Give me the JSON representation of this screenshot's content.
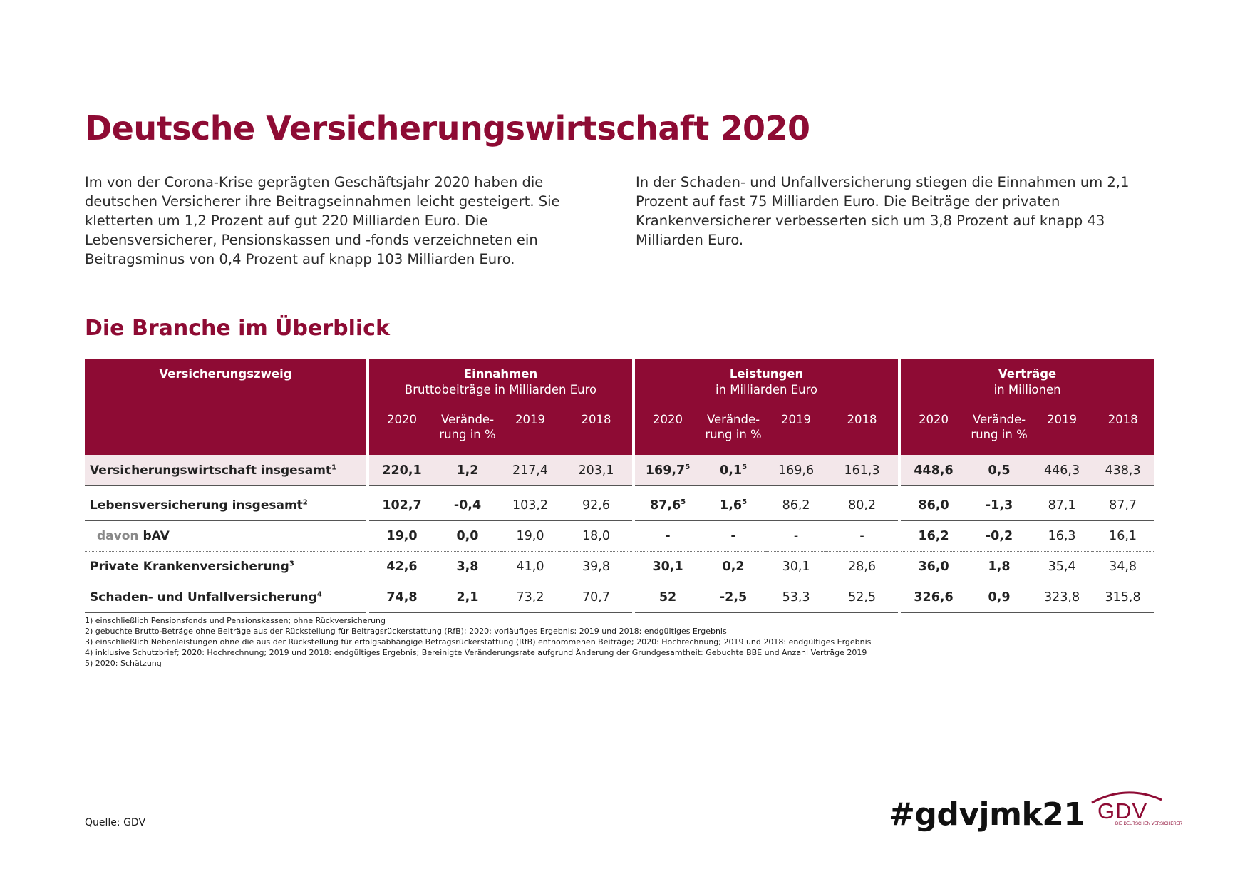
{
  "title": "Deutsche Versicherungswirtschaft 2020",
  "intro_left": "Im von der Corona-Krise geprägten Geschäftsjahr 2020 haben die deutschen Versicherer ihre Beitragseinnahmen leicht gesteigert. Sie kletterten um 1,2 Prozent auf gut 220 Milliarden Euro. Die Lebensversicherer, Pensionskassen und -fonds verzeichneten ein Beitragsminus von 0,4 Prozent auf knapp 103 Milliarden Euro.",
  "intro_right": "In der Schaden- und Unfallversicherung stiegen die Einnahmen um 2,1 Prozent auf fast 75 Milliarden Euro. Die Beiträge der privaten Krankenversicherer verbesserten sich um 3,8 Prozent auf knapp 43 Milliarden Euro.",
  "subtitle": "Die Branche im Überblick",
  "table": {
    "header_label": "Versicherungszweig",
    "groups": [
      {
        "title": "Einnahmen",
        "subtitle": "Bruttobeiträge in Milliarden Euro"
      },
      {
        "title": "Leistungen",
        "subtitle": "in Milliarden Euro"
      },
      {
        "title": "Verträge",
        "subtitle": "in Millionen"
      }
    ],
    "columns": {
      "c2020": "2020",
      "change_1": "Verände-",
      "change_2": "rung in %",
      "c2019": "2019",
      "c2018": "2018"
    },
    "rows": [
      {
        "label": "Versicherungswirtschaft insgesamt",
        "note": "1",
        "values": [
          "220,1",
          "1,2",
          "217,4",
          "203,1",
          "169,7",
          "0,1",
          "169,6",
          "161,3",
          "448,6",
          "0,5",
          "446,3",
          "438,3"
        ],
        "value_notes": {
          "4": "5",
          "5": "5"
        }
      },
      {
        "label": "Lebensversicherung insgesamt",
        "note": "2",
        "values": [
          "102,7",
          "-0,4",
          "103,2",
          "92,6",
          "87,6",
          "1,6",
          "86,2",
          "80,2",
          "86,0",
          "-1,3",
          "87,1",
          "87,7"
        ],
        "value_notes": {
          "4": "5",
          "5": "5"
        }
      },
      {
        "label_prefix": "davon",
        "label": "bAV",
        "values": [
          "19,0",
          "0,0",
          "19,0",
          "18,0",
          "-",
          "-",
          "-",
          "-",
          "16,2",
          "-0,2",
          "16,3",
          "16,1"
        ]
      },
      {
        "label": "Private Krankenversicherung",
        "note": "3",
        "values": [
          "42,6",
          "3,8",
          "41,0",
          "39,8",
          "30,1",
          "0,2",
          "30,1",
          "28,6",
          "36,0",
          "1,8",
          "35,4",
          "34,8"
        ]
      },
      {
        "label": "Schaden- und Unfallversicherung",
        "note": "4",
        "values": [
          "74,8",
          "2,1",
          "73,2",
          "70,7",
          "52",
          "-2,5",
          "53,3",
          "52,5",
          "326,6",
          "0,9",
          "323,8",
          "315,8"
        ]
      }
    ]
  },
  "footnotes": [
    "1)  einschließlich Pensionsfonds und Pensionskassen; ohne Rückversicherung",
    "2)  gebuchte Brutto-Beträge ohne Beiträge aus der Rückstellung für Beitragsrückerstattung (RfB); 2020: vorläufiges Ergebnis; 2019 und 2018: endgültiges Ergebnis",
    "3)  einschließlich Nebenleistungen ohne die aus der Rückstellung für erfolgsabhängige Betragsrückerstattung (RfB) entnommenen Beiträge; 2020: Hochrechnung; 2019 und 2018: endgültiges Ergebnis",
    "4)  inklusive Schutzbrief; 2020: Hochrechnung; 2019 und 2018: endgültiges Ergebnis; Bereinigte Veränderungsrate aufgrund Änderung der Grundgesamtheit: Gebuchte BBE und Anzahl Verträge 2019",
    "5)  2020: Schätzung"
  ],
  "source": "Quelle: GDV",
  "hashtag": "#gdvjmk21",
  "logo": {
    "word": "GDV",
    "tagline": "DIE DEUTSCHEN VERSICHERER"
  },
  "colors": {
    "brand": "#8e0b34",
    "total_row_bg": "#f3e7ea"
  }
}
